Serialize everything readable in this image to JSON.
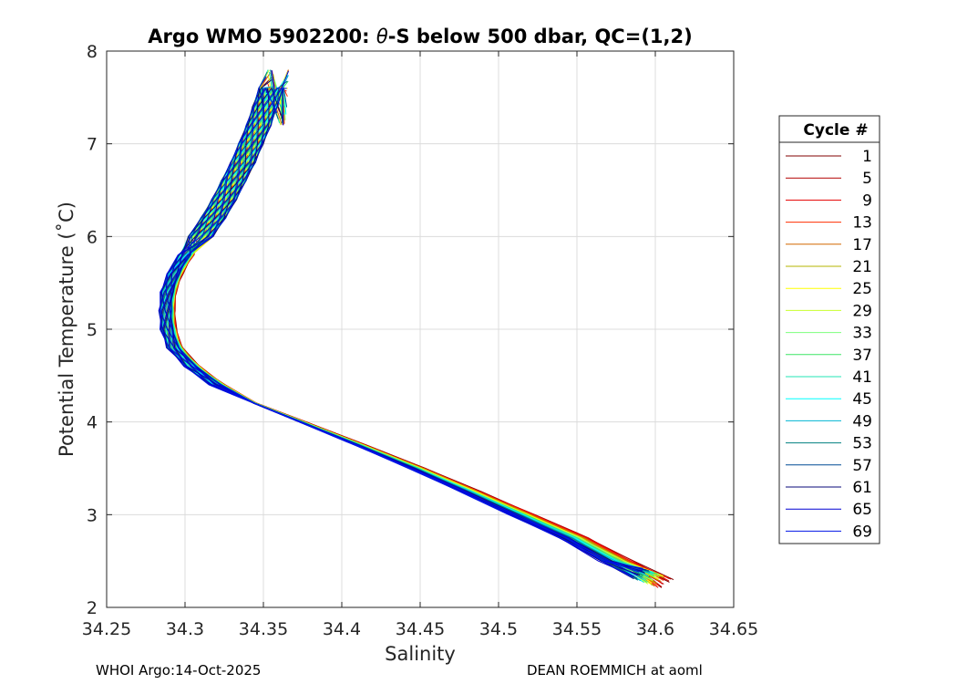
{
  "chart_data": {
    "type": "line",
    "title_prefix": "Argo WMO 5902200: ",
    "title_theta": "θ",
    "title_suffix": "-S below 500 dbar,  QC=(1,2)",
    "xlabel": "Salinity",
    "ylabel": "Potential Temperature (˚C)",
    "xlim": [
      34.25,
      34.65
    ],
    "ylim": [
      2,
      8
    ],
    "xticks": [
      "34.25",
      "34.3",
      "34.35",
      "34.4",
      "34.45",
      "34.5",
      "34.55",
      "34.6",
      "34.65"
    ],
    "yticks": [
      "2",
      "3",
      "4",
      "5",
      "6",
      "7",
      "8"
    ],
    "grid": true,
    "legend": {
      "title": "Cycle #",
      "placement": "outside-right",
      "entries": [
        "1",
        "5",
        "9",
        "13",
        "17",
        "21",
        "25",
        "29",
        "33",
        "37",
        "41",
        "45",
        "49",
        "53",
        "57",
        "61",
        "65",
        "69"
      ],
      "colors": [
        "#800000",
        "#b40000",
        "#e60000",
        "#ff2e00",
        "#d26900",
        "#b4b400",
        "#ffff00",
        "#c8ff2d",
        "#7dff7d",
        "#3ce664",
        "#23e6b4",
        "#00ffff",
        "#00b4d2",
        "#008080",
        "#004b96",
        "#0a0a78",
        "#0000d2",
        "#0014e6"
      ]
    },
    "base_profile": {
      "theta": [
        2.25,
        2.5,
        2.75,
        3.0,
        3.25,
        3.5,
        3.75,
        4.0,
        4.2,
        4.4,
        4.6,
        4.8,
        5.0,
        5.2,
        5.4,
        5.6,
        5.8,
        6.0,
        6.2,
        6.4,
        6.6,
        6.8,
        7.0,
        7.2,
        7.4,
        7.6,
        7.8
      ],
      "salinity": [
        34.598,
        34.575,
        34.548,
        34.515,
        34.482,
        34.448,
        34.412,
        34.375,
        34.345,
        34.322,
        34.306,
        34.295,
        34.291,
        34.29,
        34.291,
        34.295,
        34.302,
        34.31,
        34.318,
        34.325,
        34.331,
        34.337,
        34.342,
        34.347,
        34.351,
        34.355,
        34.358
      ]
    }
  },
  "footer": {
    "left": "WHOI Argo:14-Oct-2025",
    "right": "DEAN ROEMMICH at aoml"
  }
}
